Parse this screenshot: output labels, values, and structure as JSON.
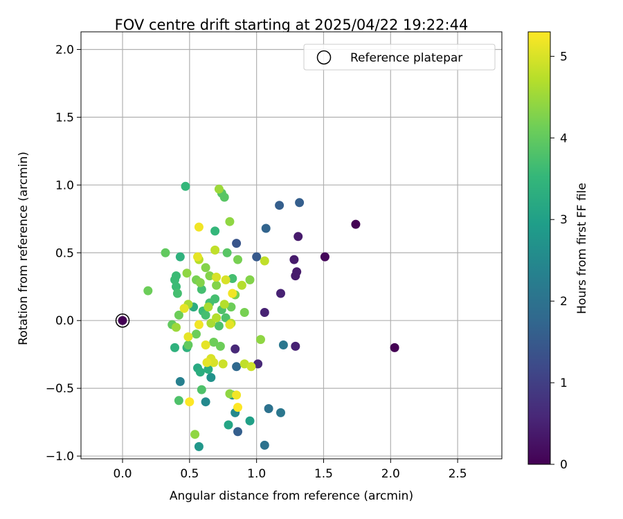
{
  "chart_data": {
    "type": "scatter",
    "title": "FOV centre drift starting at 2025/04/22 19:22:44",
    "xlabel": "Angular distance from reference (arcmin)",
    "ylabel": "Rotation from reference (arcmin)",
    "xlim": [
      -0.31,
      2.83
    ],
    "ylim": [
      -1.02,
      2.13
    ],
    "xticks": [
      0.0,
      0.5,
      1.0,
      1.5,
      2.0,
      2.5
    ],
    "xtick_labels": [
      "0.0",
      "0.5",
      "1.0",
      "1.5",
      "2.0",
      "2.5"
    ],
    "yticks": [
      -1.0,
      -0.5,
      0.0,
      0.5,
      1.0,
      1.5,
      2.0
    ],
    "ytick_labels": [
      "−1.0",
      "−0.5",
      "0.0",
      "0.5",
      "1.0",
      "1.5",
      "2.0"
    ],
    "grid": true,
    "legend": {
      "placement": "top-right",
      "entries": [
        "Reference platepar"
      ]
    },
    "reference_point": {
      "x": 0.0,
      "y": 0.0,
      "label": "Reference platepar"
    },
    "colorbar": {
      "label": "Hours from first FF file",
      "colormap": "viridis",
      "range": [
        0,
        5.3
      ],
      "ticks": [
        0,
        1,
        2,
        3,
        4,
        5
      ],
      "tick_labels": [
        "0",
        "1",
        "2",
        "3",
        "4",
        "5"
      ]
    },
    "colormap_stops": [
      "#440154",
      "#482878",
      "#3e4989",
      "#31688e",
      "#26828e",
      "#1f9e89",
      "#35b779",
      "#6ece58",
      "#b5de2b",
      "#fde725"
    ],
    "points": [
      {
        "x": 0.0,
        "y": 0.0,
        "c": 0.0
      },
      {
        "x": 1.74,
        "y": 0.71,
        "c": 0.0
      },
      {
        "x": 2.03,
        "y": -0.2,
        "c": 0.0
      },
      {
        "x": 1.51,
        "y": 0.47,
        "c": 0.1
      },
      {
        "x": 1.31,
        "y": 0.62,
        "c": 0.4
      },
      {
        "x": 1.28,
        "y": 0.45,
        "c": 0.4
      },
      {
        "x": 1.3,
        "y": 0.36,
        "c": 0.4
      },
      {
        "x": 1.29,
        "y": 0.33,
        "c": 0.4
      },
      {
        "x": 1.29,
        "y": -0.19,
        "c": 0.5
      },
      {
        "x": 1.18,
        "y": 0.2,
        "c": 0.5
      },
      {
        "x": 1.06,
        "y": 0.06,
        "c": 0.5
      },
      {
        "x": 1.01,
        "y": -0.32,
        "c": 0.6
      },
      {
        "x": 0.84,
        "y": -0.21,
        "c": 0.6
      },
      {
        "x": 0.85,
        "y": 0.57,
        "c": 1.4
      },
      {
        "x": 1.0,
        "y": 0.47,
        "c": 1.5
      },
      {
        "x": 1.32,
        "y": 0.87,
        "c": 1.6
      },
      {
        "x": 1.17,
        "y": 0.85,
        "c": 1.6
      },
      {
        "x": 1.07,
        "y": 0.68,
        "c": 1.7
      },
      {
        "x": 0.86,
        "y": -0.82,
        "c": 1.6
      },
      {
        "x": 0.85,
        "y": -0.34,
        "c": 1.8
      },
      {
        "x": 1.06,
        "y": -0.92,
        "c": 2.0
      },
      {
        "x": 1.09,
        "y": -0.65,
        "c": 2.0
      },
      {
        "x": 1.18,
        "y": -0.68,
        "c": 2.1
      },
      {
        "x": 1.2,
        "y": -0.18,
        "c": 2.1
      },
      {
        "x": 0.43,
        "y": -0.45,
        "c": 2.3
      },
      {
        "x": 0.62,
        "y": -0.6,
        "c": 2.5
      },
      {
        "x": 0.84,
        "y": -0.68,
        "c": 2.5
      },
      {
        "x": 0.82,
        "y": -0.55,
        "c": 2.6
      },
      {
        "x": 0.66,
        "y": -0.42,
        "c": 2.7
      },
      {
        "x": 0.57,
        "y": -0.93,
        "c": 2.8
      },
      {
        "x": 0.95,
        "y": -0.74,
        "c": 3.0
      },
      {
        "x": 0.79,
        "y": -0.77,
        "c": 3.1
      },
      {
        "x": 0.56,
        "y": -0.35,
        "c": 3.2
      },
      {
        "x": 0.58,
        "y": -0.38,
        "c": 3.3
      },
      {
        "x": 0.64,
        "y": -0.36,
        "c": 3.3
      },
      {
        "x": 0.48,
        "y": -0.2,
        "c": 3.4
      },
      {
        "x": 0.39,
        "y": -0.2,
        "c": 3.4
      },
      {
        "x": 0.53,
        "y": 0.1,
        "c": 3.3
      },
      {
        "x": 0.43,
        "y": 0.47,
        "c": 3.4
      },
      {
        "x": 0.47,
        "y": 0.99,
        "c": 3.5
      },
      {
        "x": 0.69,
        "y": 0.66,
        "c": 3.5
      },
      {
        "x": 0.4,
        "y": 0.33,
        "c": 3.6
      },
      {
        "x": 0.39,
        "y": 0.3,
        "c": 3.6
      },
      {
        "x": 0.4,
        "y": 0.25,
        "c": 3.6
      },
      {
        "x": 0.41,
        "y": 0.2,
        "c": 3.7
      },
      {
        "x": 0.59,
        "y": 0.23,
        "c": 3.7
      },
      {
        "x": 0.65,
        "y": 0.13,
        "c": 3.7
      },
      {
        "x": 0.6,
        "y": 0.07,
        "c": 3.6
      },
      {
        "x": 0.62,
        "y": 0.04,
        "c": 3.7
      },
      {
        "x": 0.69,
        "y": 0.16,
        "c": 3.7
      },
      {
        "x": 0.74,
        "y": 0.08,
        "c": 3.8
      },
      {
        "x": 0.77,
        "y": 0.02,
        "c": 3.8
      },
      {
        "x": 0.72,
        "y": -0.04,
        "c": 3.8
      },
      {
        "x": 0.82,
        "y": 0.31,
        "c": 3.7
      },
      {
        "x": 0.78,
        "y": 0.5,
        "c": 3.9
      },
      {
        "x": 0.74,
        "y": 0.94,
        "c": 3.9
      },
      {
        "x": 0.76,
        "y": 0.91,
        "c": 3.9
      },
      {
        "x": 0.42,
        "y": -0.59,
        "c": 3.8
      },
      {
        "x": 0.59,
        "y": -0.51,
        "c": 3.8
      },
      {
        "x": 0.32,
        "y": 0.5,
        "c": 4.0
      },
      {
        "x": 0.19,
        "y": 0.22,
        "c": 4.1
      },
      {
        "x": 0.37,
        "y": -0.03,
        "c": 4.0
      },
      {
        "x": 0.42,
        "y": 0.04,
        "c": 4.1
      },
      {
        "x": 0.55,
        "y": -0.1,
        "c": 4.1
      },
      {
        "x": 0.49,
        "y": -0.18,
        "c": 4.0
      },
      {
        "x": 0.68,
        "y": -0.16,
        "c": 4.1
      },
      {
        "x": 0.73,
        "y": -0.19,
        "c": 4.1
      },
      {
        "x": 0.81,
        "y": 0.1,
        "c": 4.1
      },
      {
        "x": 0.84,
        "y": 0.19,
        "c": 4.2
      },
      {
        "x": 0.86,
        "y": 0.45,
        "c": 4.2
      },
      {
        "x": 0.95,
        "y": 0.3,
        "c": 4.3
      },
      {
        "x": 0.91,
        "y": 0.06,
        "c": 4.2
      },
      {
        "x": 0.55,
        "y": 0.3,
        "c": 4.2
      },
      {
        "x": 0.58,
        "y": 0.28,
        "c": 4.3
      },
      {
        "x": 0.65,
        "y": 0.33,
        "c": 4.3
      },
      {
        "x": 0.7,
        "y": 0.26,
        "c": 4.3
      },
      {
        "x": 0.62,
        "y": 0.39,
        "c": 4.3
      },
      {
        "x": 0.48,
        "y": 0.35,
        "c": 4.4
      },
      {
        "x": 0.8,
        "y": 0.73,
        "c": 4.4
      },
      {
        "x": 0.72,
        "y": 0.97,
        "c": 4.5
      },
      {
        "x": 0.54,
        "y": -0.84,
        "c": 4.4
      },
      {
        "x": 0.8,
        "y": -0.54,
        "c": 4.4
      },
      {
        "x": 1.03,
        "y": -0.14,
        "c": 4.4
      },
      {
        "x": 0.4,
        "y": -0.05,
        "c": 4.5
      },
      {
        "x": 0.49,
        "y": 0.12,
        "c": 4.6
      },
      {
        "x": 0.64,
        "y": 0.1,
        "c": 4.6
      },
      {
        "x": 0.66,
        "y": -0.02,
        "c": 4.6
      },
      {
        "x": 0.7,
        "y": 0.02,
        "c": 4.7
      },
      {
        "x": 0.76,
        "y": 0.12,
        "c": 4.7
      },
      {
        "x": 0.81,
        "y": -0.02,
        "c": 4.7
      },
      {
        "x": 0.89,
        "y": 0.26,
        "c": 4.7
      },
      {
        "x": 0.57,
        "y": 0.45,
        "c": 4.7
      },
      {
        "x": 0.69,
        "y": 0.52,
        "c": 4.8
      },
      {
        "x": 1.06,
        "y": 0.44,
        "c": 4.8
      },
      {
        "x": 0.91,
        "y": -0.32,
        "c": 4.8
      },
      {
        "x": 0.96,
        "y": -0.34,
        "c": 4.9
      },
      {
        "x": 0.75,
        "y": -0.32,
        "c": 4.9
      },
      {
        "x": 0.66,
        "y": -0.28,
        "c": 5.0
      },
      {
        "x": 0.68,
        "y": -0.31,
        "c": 5.0
      },
      {
        "x": 0.63,
        "y": -0.31,
        "c": 5.1
      },
      {
        "x": 0.62,
        "y": -0.18,
        "c": 5.1
      },
      {
        "x": 0.49,
        "y": -0.12,
        "c": 5.1
      },
      {
        "x": 0.46,
        "y": 0.09,
        "c": 5.1
      },
      {
        "x": 0.57,
        "y": -0.03,
        "c": 5.2
      },
      {
        "x": 0.7,
        "y": 0.32,
        "c": 5.0
      },
      {
        "x": 0.77,
        "y": 0.3,
        "c": 5.0
      },
      {
        "x": 0.56,
        "y": 0.47,
        "c": 5.1
      },
      {
        "x": 0.57,
        "y": 0.69,
        "c": 5.2
      },
      {
        "x": 0.8,
        "y": -0.03,
        "c": 5.1
      },
      {
        "x": 0.82,
        "y": 0.2,
        "c": 5.2
      },
      {
        "x": 0.85,
        "y": -0.55,
        "c": 5.2
      },
      {
        "x": 0.86,
        "y": -0.64,
        "c": 5.3
      },
      {
        "x": 0.5,
        "y": -0.6,
        "c": 5.3
      }
    ]
  }
}
